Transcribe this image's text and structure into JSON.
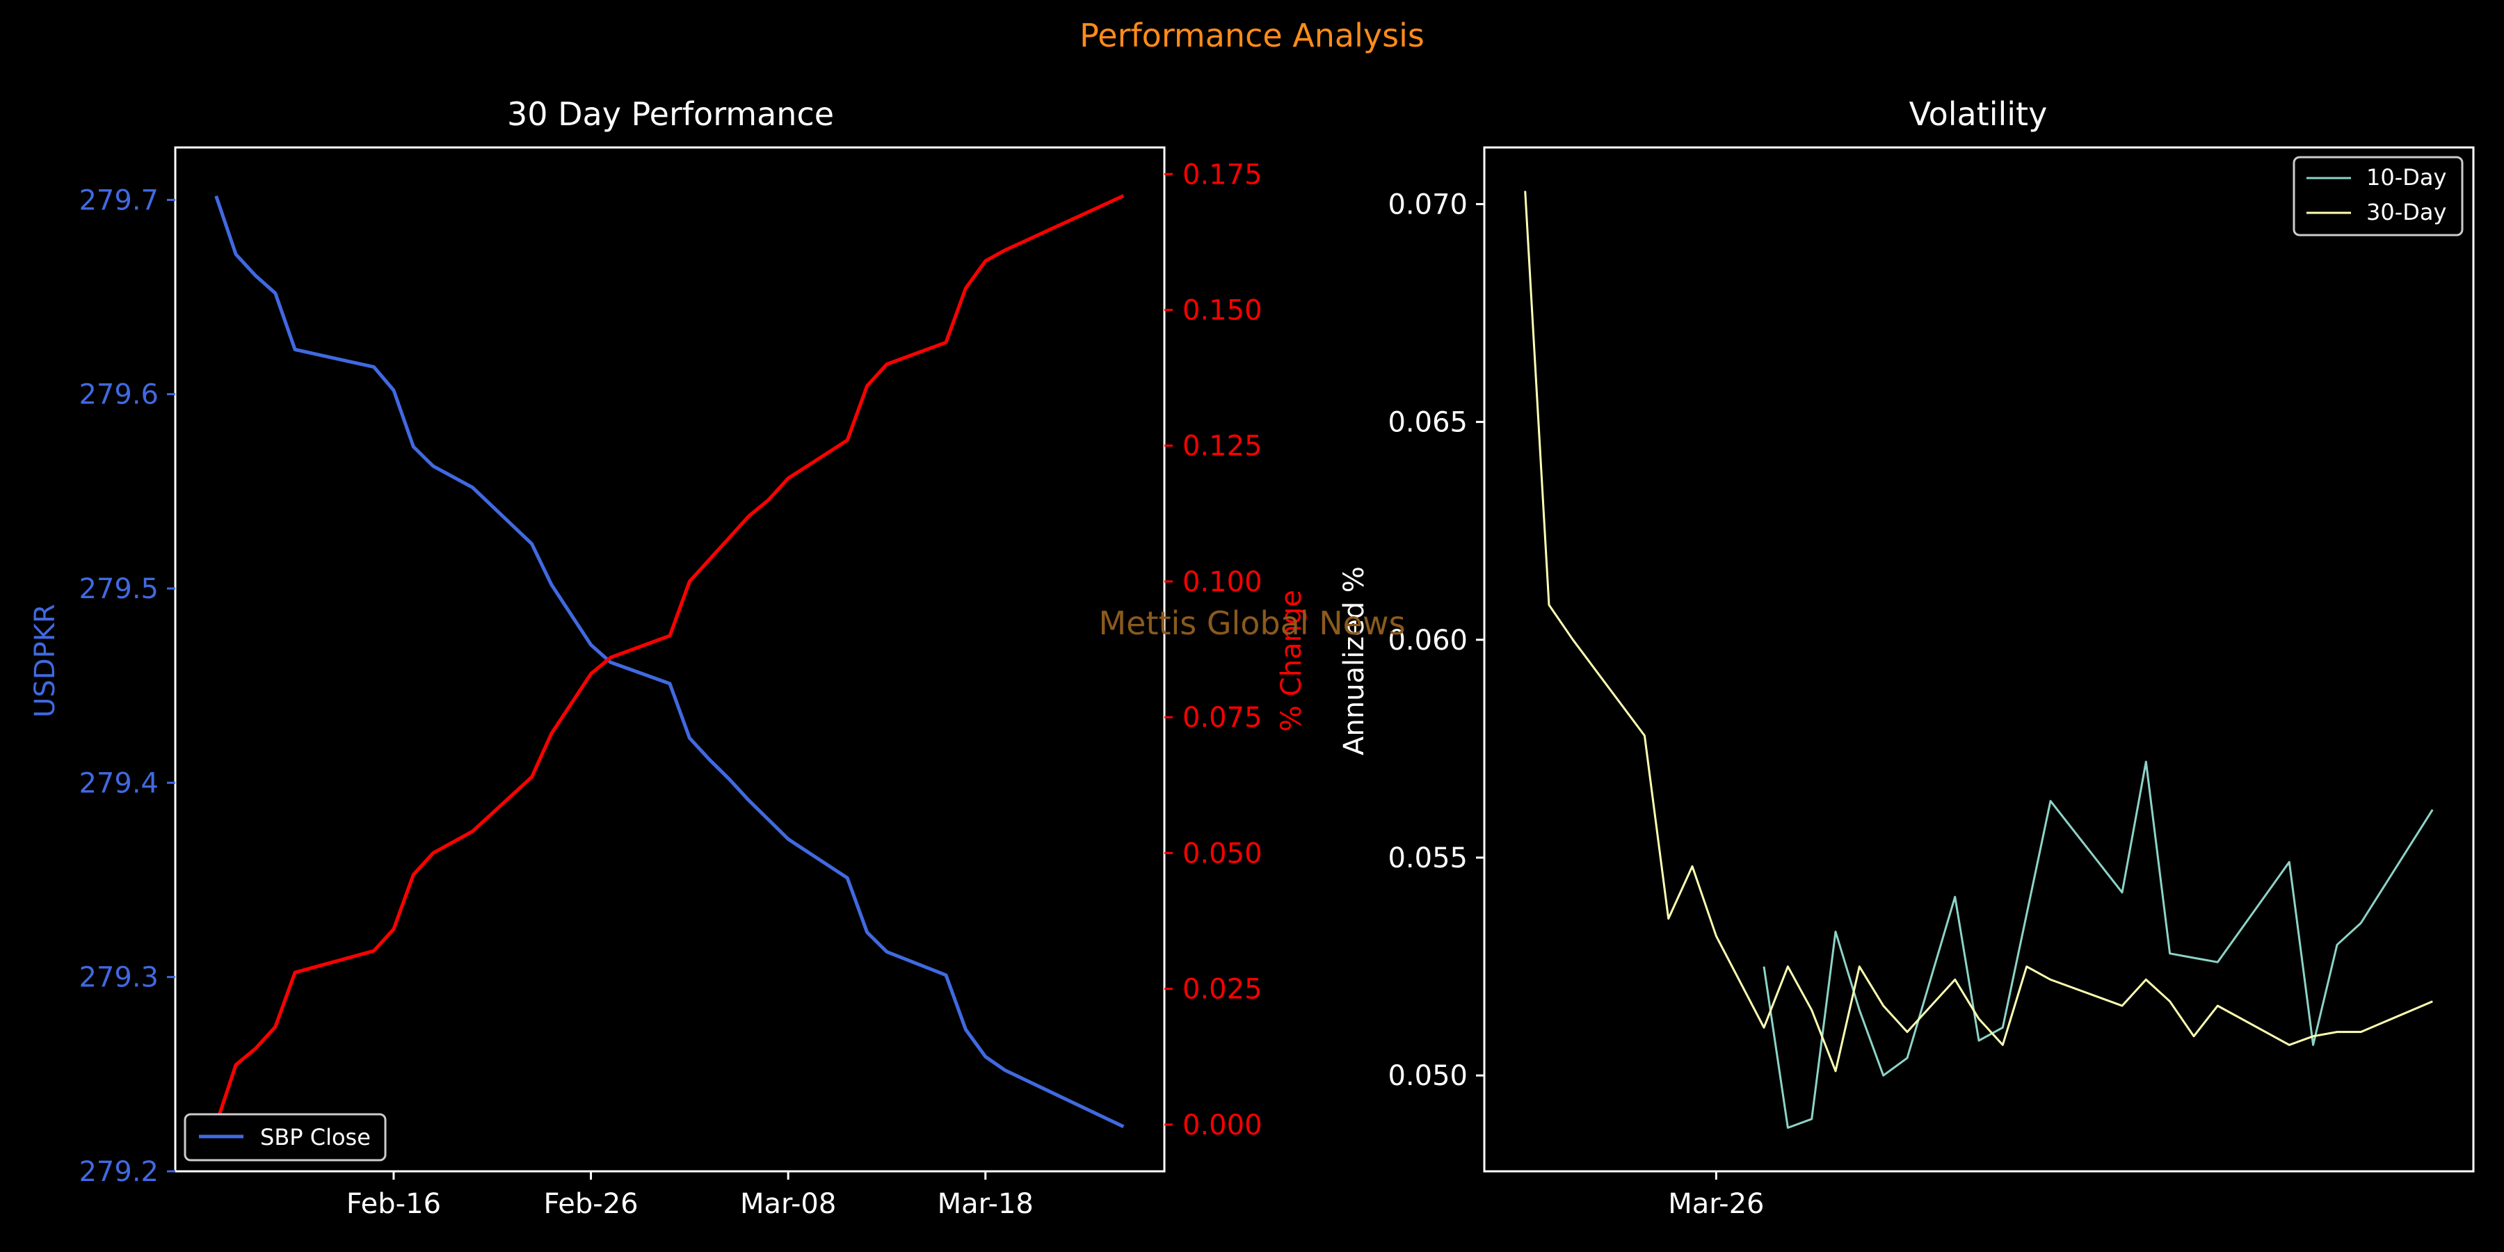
{
  "figure": {
    "suptitle": "Performance Analysis",
    "watermark": "Mettis Global News",
    "colors": {
      "background": "#000000",
      "suptitle": "#FF8C1A",
      "watermark": "#8B5A1E",
      "axes": "#FFFFFF"
    }
  },
  "chart_data": [
    {
      "type": "line",
      "title": "30 Day Performance",
      "xlabel": "",
      "ylabel": "USDPKR",
      "ylabel_right": "% Change",
      "x_dates": [
        "2025-02-07",
        "2025-02-08",
        "2025-02-09",
        "2025-02-10",
        "2025-02-11",
        "2025-02-15",
        "2025-02-16",
        "2025-02-17",
        "2025-02-18",
        "2025-02-20",
        "2025-02-23",
        "2025-02-24",
        "2025-02-26",
        "2025-02-27",
        "2025-03-02",
        "2025-03-03",
        "2025-03-04",
        "2025-03-05",
        "2025-03-06",
        "2025-03-07",
        "2025-03-08",
        "2025-03-11",
        "2025-03-12",
        "2025-03-13",
        "2025-03-16",
        "2025-03-17",
        "2025-03-18",
        "2025-03-19",
        "2025-03-25"
      ],
      "xtick_labels": [
        "Feb-16",
        "Feb-26",
        "Mar-08",
        "Mar-18"
      ],
      "xtick_dates": [
        "2025-02-16",
        "2025-02-26",
        "2025-03-08",
        "2025-03-18"
      ],
      "series": [
        {
          "name": "SBP Close",
          "axis": "left",
          "color": "#4169E1",
          "values": [
            279.702,
            279.672,
            279.661,
            279.652,
            279.623,
            279.614,
            279.602,
            279.573,
            279.563,
            279.552,
            279.523,
            279.502,
            279.471,
            279.462,
            279.451,
            279.423,
            279.412,
            279.402,
            279.391,
            279.381,
            279.371,
            279.351,
            279.323,
            279.313,
            279.301,
            279.273,
            279.259,
            279.252,
            279.223
          ]
        },
        {
          "name": "% Change",
          "axis": "right",
          "color": "#FF0000",
          "values": [
            0.0,
            0.011,
            0.014,
            0.018,
            0.028,
            0.032,
            0.036,
            0.046,
            0.05,
            0.054,
            0.064,
            0.072,
            0.083,
            0.086,
            0.09,
            0.1,
            0.104,
            0.108,
            0.112,
            0.115,
            0.119,
            0.126,
            0.136,
            0.14,
            0.144,
            0.154,
            0.159,
            0.161,
            0.171
          ]
        }
      ],
      "ylim": [
        279.2,
        279.727
      ],
      "yticks": [
        "279.2",
        "279.3",
        "279.4",
        "279.5",
        "279.6",
        "279.7"
      ],
      "ylim_right": [
        -0.0086,
        0.1799
      ],
      "yticks_right": [
        "0.000",
        "0.025",
        "0.050",
        "0.075",
        "0.100",
        "0.125",
        "0.150",
        "0.175"
      ],
      "legend": {
        "placement": "lower-left",
        "entries": [
          "SBP Close"
        ]
      },
      "grid": false
    },
    {
      "type": "line",
      "title": "Volatility",
      "xlabel": "",
      "ylabel": "Annualized %",
      "x_dates": [
        "2025-03-18",
        "2025-03-19",
        "2025-03-20",
        "2025-03-23",
        "2025-03-24",
        "2025-03-25",
        "2025-03-26",
        "2025-03-28",
        "2025-03-29",
        "2025-03-30",
        "2025-03-31",
        "2025-04-01",
        "2025-04-02",
        "2025-04-03",
        "2025-04-05",
        "2025-04-06",
        "2025-04-07",
        "2025-04-08",
        "2025-04-09",
        "2025-04-12",
        "2025-04-13",
        "2025-04-14",
        "2025-04-15",
        "2025-04-16",
        "2025-04-19",
        "2025-04-20",
        "2025-04-21",
        "2025-04-22",
        "2025-04-25"
      ],
      "xtick_labels": [
        "Mar-26"
      ],
      "xtick_dates": [
        "2025-03-26"
      ],
      "series": [
        {
          "name": "10-Day",
          "color": "#8DD3C7",
          "x_dates": [
            "2025-03-28",
            "2025-03-29",
            "2025-03-30",
            "2025-03-31",
            "2025-04-01",
            "2025-04-02",
            "2025-04-03",
            "2025-04-05",
            "2025-04-06",
            "2025-04-07",
            "2025-04-08",
            "2025-04-09",
            "2025-04-12",
            "2025-04-13",
            "2025-04-14",
            "2025-04-15",
            "2025-04-16",
            "2025-04-19",
            "2025-04-20",
            "2025-04-21",
            "2025-04-22",
            "2025-04-25"
          ],
          "values": [
            0.0525,
            0.0488,
            0.049,
            0.0533,
            0.0515,
            0.05,
            0.0504,
            0.0541,
            0.0508,
            0.0511,
            0.0537,
            0.0563,
            0.0542,
            0.0572,
            0.0528,
            0.0527,
            0.0526,
            0.0549,
            0.0507,
            0.053,
            0.0535,
            0.0561
          ]
        },
        {
          "name": "30-Day",
          "color": "#FFFFB3",
          "x_dates": [
            "2025-03-18",
            "2025-03-19",
            "2025-03-20",
            "2025-03-23",
            "2025-03-24",
            "2025-03-25",
            "2025-03-26",
            "2025-03-28",
            "2025-03-29",
            "2025-03-30",
            "2025-03-31",
            "2025-04-01",
            "2025-04-02",
            "2025-04-03",
            "2025-04-05",
            "2025-04-06",
            "2025-04-07",
            "2025-04-08",
            "2025-04-09",
            "2025-04-12",
            "2025-04-13",
            "2025-04-14",
            "2025-04-15",
            "2025-04-16",
            "2025-04-19",
            "2025-04-20",
            "2025-04-21",
            "2025-04-22",
            "2025-04-25"
          ],
          "values": [
            0.0703,
            0.0608,
            0.06,
            0.0578,
            0.0536,
            0.0548,
            0.0532,
            0.0511,
            0.0525,
            0.0515,
            0.0501,
            0.0525,
            0.0516,
            0.051,
            0.0522,
            0.0513,
            0.0507,
            0.0525,
            0.0522,
            0.0516,
            0.0522,
            0.0517,
            0.0509,
            0.0516,
            0.0507,
            0.0509,
            0.051,
            0.051,
            0.0517
          ]
        }
      ],
      "ylim": [
        0.0478,
        0.0713
      ],
      "yticks": [
        "0.050",
        "0.055",
        "0.060",
        "0.065",
        "0.070"
      ],
      "legend": {
        "placement": "upper-right",
        "entries": [
          "10-Day",
          "30-Day"
        ]
      },
      "grid": false
    }
  ]
}
